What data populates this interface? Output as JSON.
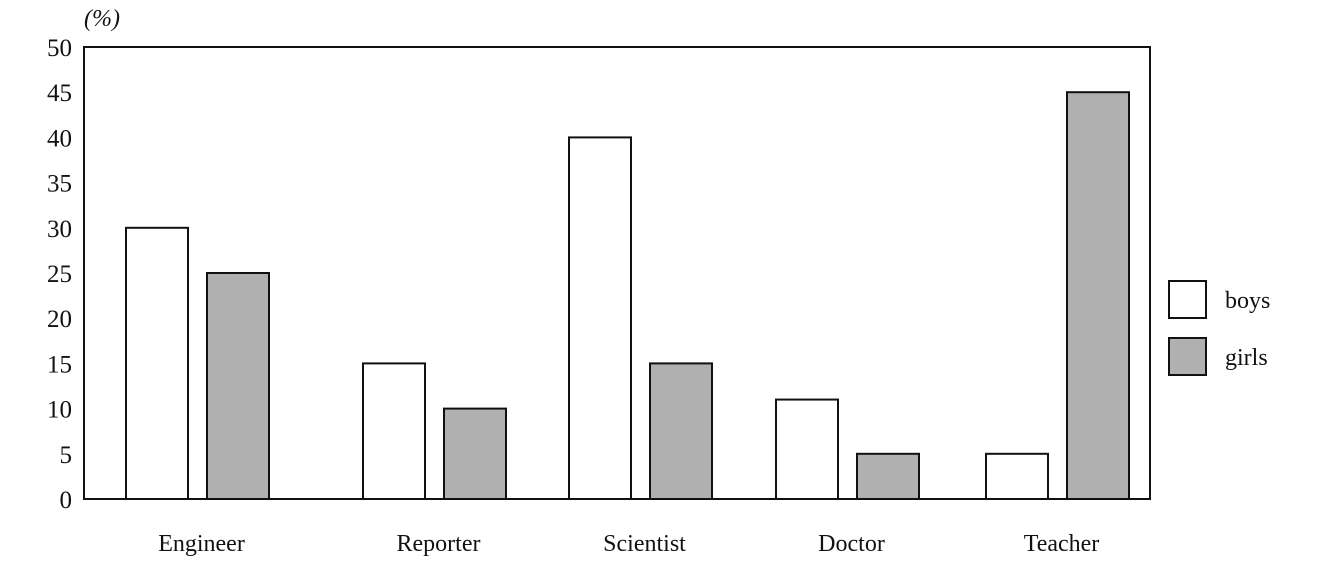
{
  "chart_data": {
    "type": "bar",
    "ylabel": "(%)",
    "ylim": [
      0,
      50
    ],
    "yticks": [
      "0",
      "5",
      "10",
      "15",
      "20",
      "25",
      "30",
      "35",
      "40",
      "45",
      "50"
    ],
    "categories": [
      "Engineer",
      "Reporter",
      "Scientist",
      "Doctor",
      "Teacher"
    ],
    "series": [
      {
        "name": "boys",
        "values": [
          30,
          15,
          40,
          11,
          5
        ],
        "color": "#ffffff"
      },
      {
        "name": "girls",
        "values": [
          25,
          10,
          15,
          5,
          45
        ],
        "color": "#b0b0b0"
      }
    ],
    "grid": false,
    "legend": "right"
  }
}
